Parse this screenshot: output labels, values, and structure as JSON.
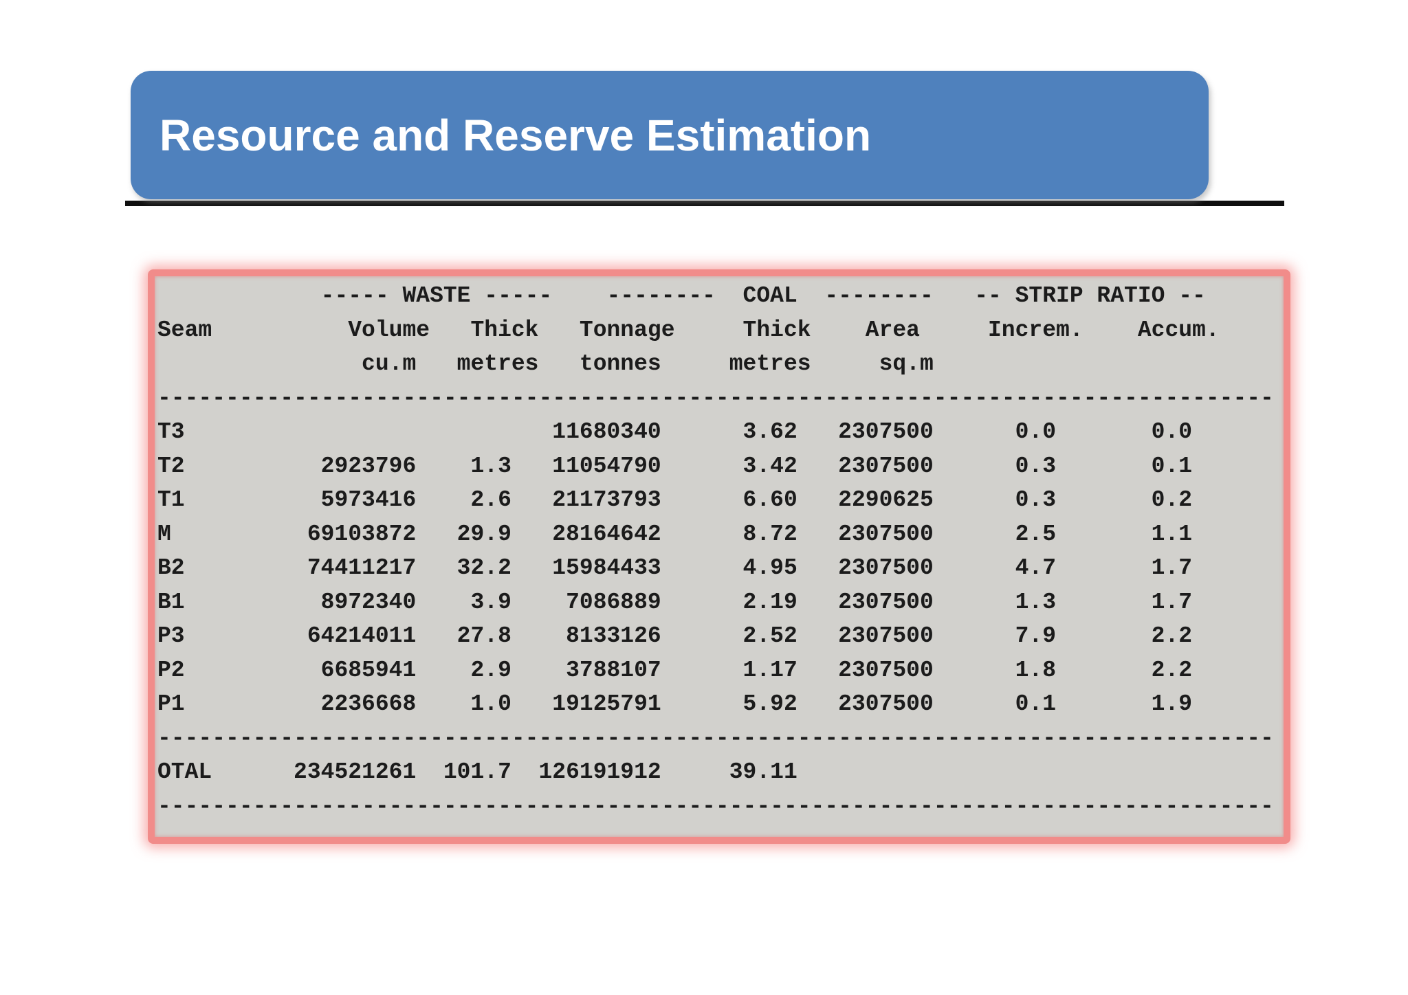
{
  "slide": {
    "title": "Resource and Reserve Estimation"
  },
  "colors": {
    "title_bg": "#4f81bd",
    "title_text": "#ffffff",
    "rule": "#0f0f0f",
    "report_bg": "#d2d1cd",
    "report_border": "#f18c8a",
    "report_text": "#1b1b1b"
  },
  "report": {
    "group_line": "            ----- WASTE -----    --------  COAL  --------   -- STRIP RATIO --",
    "columns_line": "Seam          Volume   Thick   Tonnage     Thick    Area     Increm.    Accum.",
    "units_line": "               cu.m   metres   tonnes     metres     sq.m",
    "separator": "----------------------------------------------------------------------------------",
    "column_groups": [
      "WASTE",
      "COAL",
      "STRIP RATIO"
    ],
    "columns": [
      "Seam",
      "Volume cu.m",
      "Thick metres",
      "Tonnage tonnes",
      "Thick metres",
      "Area sq.m",
      "Increm.",
      "Accum."
    ],
    "rows": [
      {
        "seam": "T3",
        "volume": "",
        "thick_waste": "",
        "tonnage": "11680340",
        "thick_coal": "3.62",
        "area": "2307500",
        "increm": "0.0",
        "accum": "0.0"
      },
      {
        "seam": "T2",
        "volume": "2923796",
        "thick_waste": "1.3",
        "tonnage": "11054790",
        "thick_coal": "3.42",
        "area": "2307500",
        "increm": "0.3",
        "accum": "0.1"
      },
      {
        "seam": "T1",
        "volume": "5973416",
        "thick_waste": "2.6",
        "tonnage": "21173793",
        "thick_coal": "6.60",
        "area": "2290625",
        "increm": "0.3",
        "accum": "0.2"
      },
      {
        "seam": "M",
        "volume": "69103872",
        "thick_waste": "29.9",
        "tonnage": "28164642",
        "thick_coal": "8.72",
        "area": "2307500",
        "increm": "2.5",
        "accum": "1.1"
      },
      {
        "seam": "B2",
        "volume": "74411217",
        "thick_waste": "32.2",
        "tonnage": "15984433",
        "thick_coal": "4.95",
        "area": "2307500",
        "increm": "4.7",
        "accum": "1.7"
      },
      {
        "seam": "B1",
        "volume": "8972340",
        "thick_waste": "3.9",
        "tonnage": "7086889",
        "thick_coal": "2.19",
        "area": "2307500",
        "increm": "1.3",
        "accum": "1.7"
      },
      {
        "seam": "P3",
        "volume": "64214011",
        "thick_waste": "27.8",
        "tonnage": "8133126",
        "thick_coal": "2.52",
        "area": "2307500",
        "increm": "7.9",
        "accum": "2.2"
      },
      {
        "seam": "P2",
        "volume": "6685941",
        "thick_waste": "2.9",
        "tonnage": "3788107",
        "thick_coal": "1.17",
        "area": "2307500",
        "increm": "1.8",
        "accum": "2.2"
      },
      {
        "seam": "P1",
        "volume": "2236668",
        "thick_waste": "1.0",
        "tonnage": "19125791",
        "thick_coal": "5.92",
        "area": "2307500",
        "increm": "0.1",
        "accum": "1.9"
      }
    ],
    "total": {
      "seam": "OTAL",
      "volume": "234521261",
      "thick_waste": "101.7",
      "tonnage": "126191912",
      "thick_coal": "39.11",
      "area": "",
      "increm": "",
      "accum": ""
    }
  }
}
